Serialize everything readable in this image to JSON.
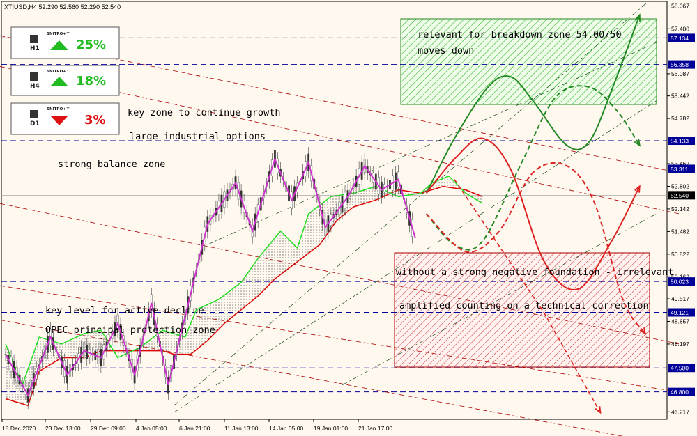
{
  "header": {
    "symbol_info": "XTIUSD,H4  52.290 52.560 52.290 52.540"
  },
  "signals": [
    {
      "tf": "H1",
      "brand": "SNITRO+™",
      "dir": "up",
      "pct": "25%"
    },
    {
      "tf": "H4",
      "brand": "SNITRO+™",
      "dir": "up",
      "pct": "18%"
    },
    {
      "tf": "D1",
      "brand": "SNITRO+™",
      "dir": "down",
      "pct": "3%"
    }
  ],
  "annotations": {
    "breakdown_1": "relevant for breakdown zone 54.00/50",
    "breakdown_2": "moves down",
    "key_zone": "key zone to continue growth",
    "industrial": "large industrial options",
    "balance": "strong balance zone",
    "negative": "without a strong negative foundation - irrelevant",
    "amplified": "amplified counting on a technical correction",
    "key_level": "key level for active decline",
    "opec": "OPEC principal protection zone"
  },
  "colors": {
    "background": "#fff8ef",
    "price_line": "#cc33cc",
    "ichimoku_green": "#22dd22",
    "ichimoku_red": "#dd0000",
    "level_blue": "#000099",
    "trend_red": "#aa0000",
    "forecast_green": "#228822",
    "forecast_red": "#dd2222",
    "green_zone": "#33bb33",
    "red_zone": "#cc2222"
  },
  "chart_data": {
    "type": "line",
    "ylim": [
      46.0,
      58.2
    ],
    "y_ticks": [
      "58.067",
      "57.400",
      "56.087",
      "55.442",
      "54.782",
      "53.462",
      "52.802",
      "52.142",
      "51.482",
      "50.822",
      "50.162",
      "49.517",
      "48.857",
      "48.197",
      "46.217"
    ],
    "highlighted_levels": [
      {
        "value": 57.134,
        "label": "57.134",
        "style": "blue"
      },
      {
        "value": 56.358,
        "label": "56.358",
        "style": "blue"
      },
      {
        "value": 54.133,
        "label": "54.133",
        "style": "blue"
      },
      {
        "value": 53.311,
        "label": "53.311",
        "style": "blue"
      },
      {
        "value": 52.54,
        "label": "52.540",
        "style": "black"
      },
      {
        "value": 50.023,
        "label": "50.023",
        "style": "blue"
      },
      {
        "value": 49.121,
        "label": "49.121",
        "style": "blue"
      },
      {
        "value": 47.5,
        "label": "47.500",
        "style": "blue"
      },
      {
        "value": 46.8,
        "label": "46.800",
        "style": "blue"
      }
    ],
    "x_ticks": [
      "18 Dec 2020",
      "23 Dec 13:00",
      "29 Dec 09:00",
      "4 Jan 05:00",
      "6 Jan 21:00",
      "11 Jan 13:00",
      "14 Jan 05:00",
      "19 Jan 01:00",
      "21 Jan 17:00"
    ],
    "price_swing": [
      [
        0,
        47.9
      ],
      [
        4,
        46.7
      ],
      [
        8,
        48.4
      ],
      [
        11,
        47.3
      ],
      [
        14,
        48.0
      ],
      [
        17,
        47.8
      ],
      [
        20,
        48.8
      ],
      [
        23,
        47.3
      ],
      [
        26,
        49.4
      ],
      [
        29,
        47.0
      ],
      [
        32,
        49.0
      ],
      [
        36,
        51.7
      ],
      [
        41,
        52.9
      ],
      [
        44,
        51.5
      ],
      [
        48,
        53.6
      ],
      [
        51,
        52.4
      ],
      [
        54,
        53.5
      ],
      [
        57,
        51.6
      ],
      [
        61,
        52.5
      ],
      [
        64,
        53.4
      ],
      [
        67,
        52.7
      ],
      [
        70,
        53.0
      ],
      [
        73,
        51.3
      ]
    ],
    "forecast_green_solid": [
      [
        75,
        52.6
      ],
      [
        80,
        54.2
      ],
      [
        86,
        55.7
      ],
      [
        90,
        56.0
      ],
      [
        94,
        55.3
      ],
      [
        100,
        54.0
      ],
      [
        104,
        54.1
      ],
      [
        108,
        55.6
      ],
      [
        113,
        57.8
      ]
    ],
    "forecast_green_dashed": [
      [
        75,
        52.0
      ],
      [
        80,
        51.1
      ],
      [
        85,
        51.2
      ],
      [
        92,
        53.5
      ],
      [
        98,
        55.4
      ],
      [
        104,
        55.7
      ],
      [
        109,
        55.0
      ],
      [
        113,
        54.0
      ]
    ],
    "forecast_red_solid": [
      [
        75,
        52.6
      ],
      [
        80,
        53.6
      ],
      [
        85,
        54.2
      ],
      [
        90,
        53.3
      ],
      [
        96,
        50.6
      ],
      [
        102,
        49.8
      ],
      [
        108,
        51.2
      ],
      [
        113,
        52.8
      ]
    ],
    "forecast_red_dashed": [
      [
        75,
        52.0
      ],
      [
        82,
        50.9
      ],
      [
        88,
        51.5
      ],
      [
        94,
        53.2
      ],
      [
        100,
        53.4
      ],
      [
        105,
        52.3
      ],
      [
        110,
        49.5
      ],
      [
        114,
        48.5
      ]
    ],
    "forecast_red_drop": [
      [
        80,
        53.0
      ],
      [
        96,
        49.1
      ],
      [
        106,
        46.2
      ]
    ]
  }
}
